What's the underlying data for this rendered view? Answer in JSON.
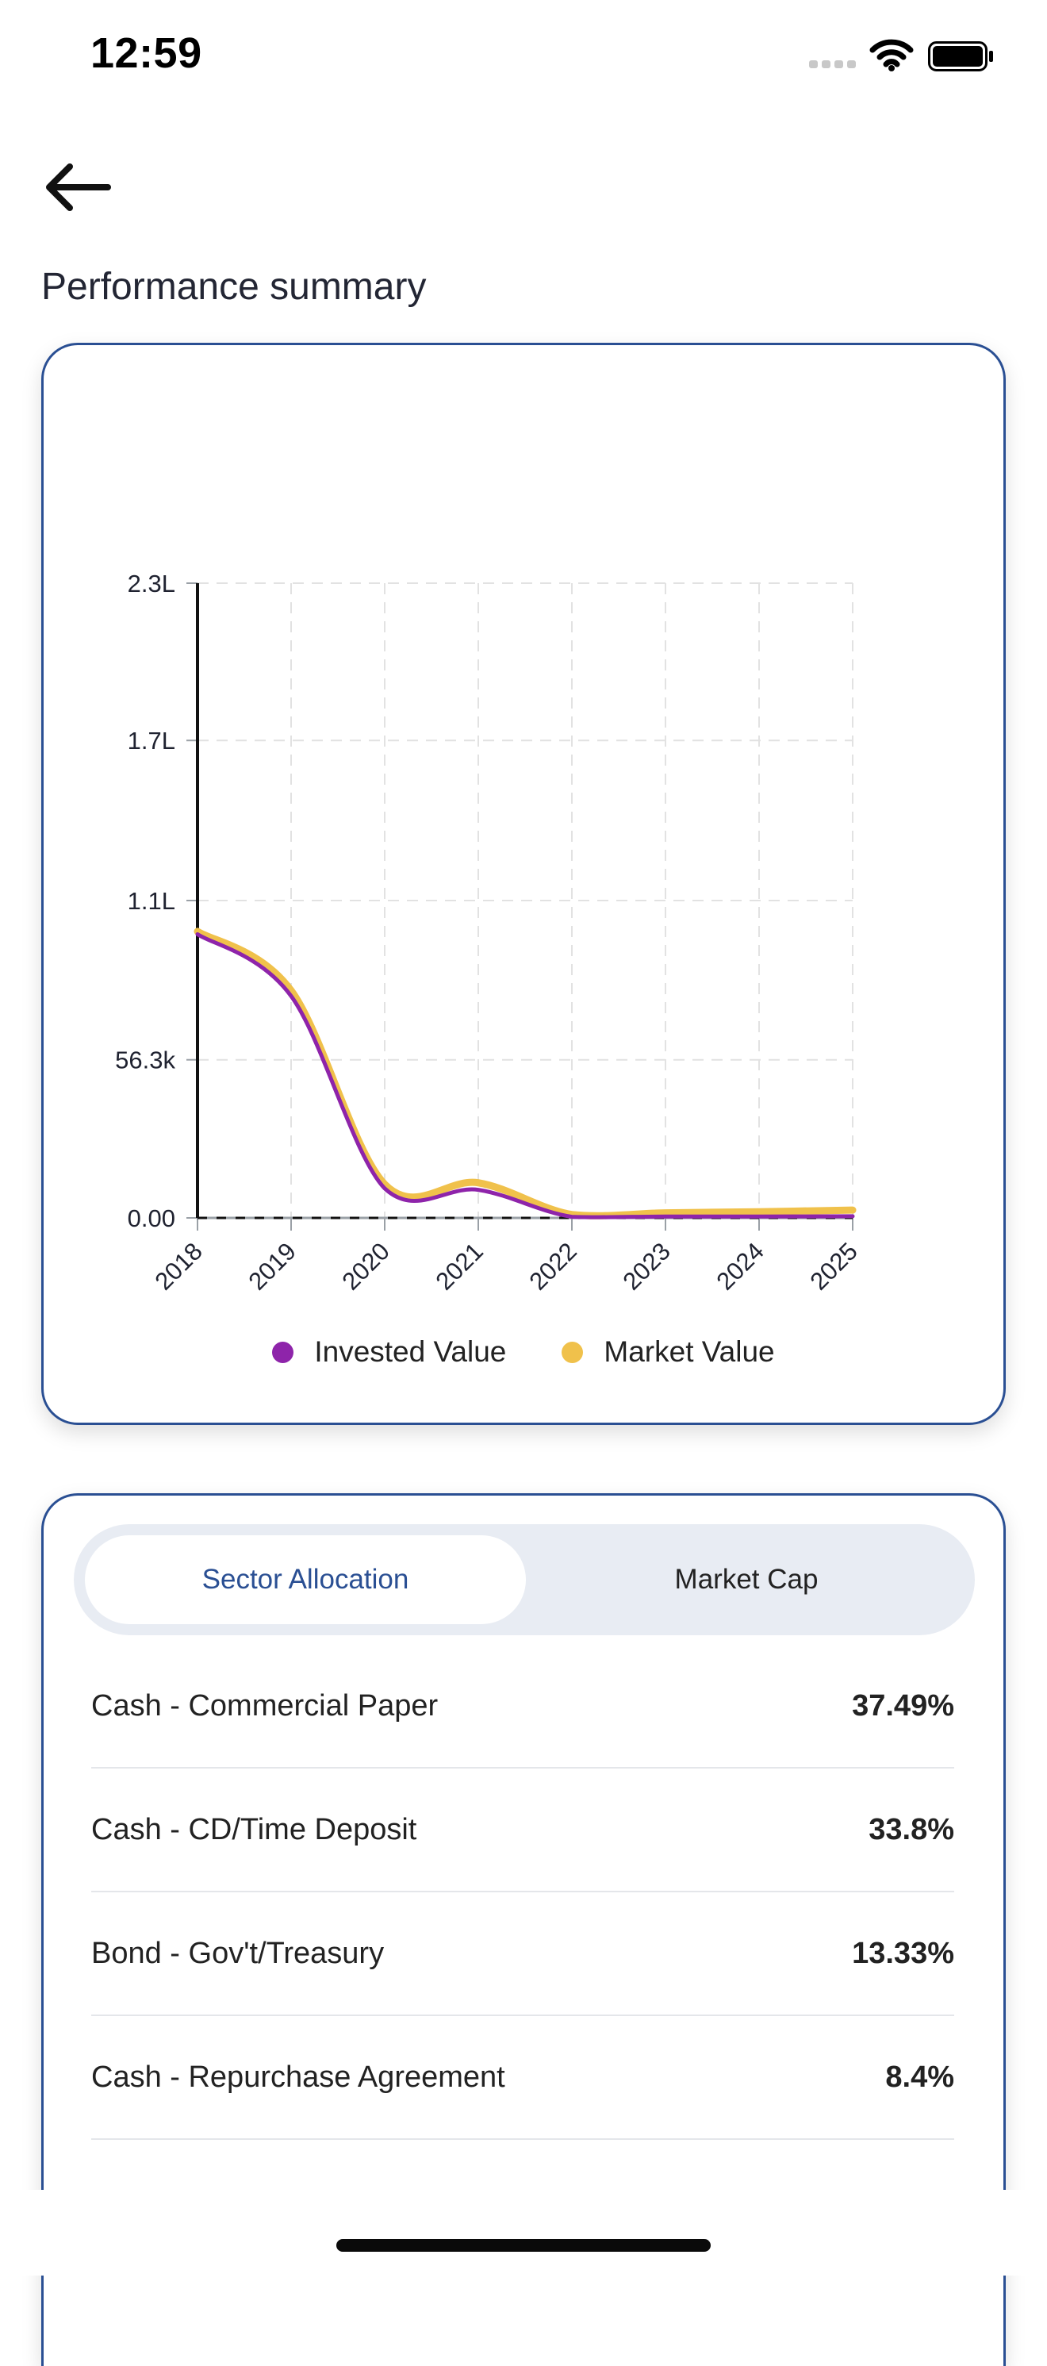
{
  "status_bar": {
    "time": "12:59"
  },
  "header": {
    "title": "Performance summary"
  },
  "chart_data": {
    "type": "line",
    "x": [
      "2018",
      "2019",
      "2020",
      "2021",
      "2022",
      "2023",
      "2024",
      "2025"
    ],
    "y_ticks": [
      "0.00",
      "56.3k",
      "1.1L",
      "1.7L",
      "2.3L"
    ],
    "y_tick_values": [
      0,
      56300,
      113000,
      170000,
      226000
    ],
    "ylim": [
      0,
      226000
    ],
    "grid": true,
    "legend_position": "bottom-center",
    "series": [
      {
        "name": "Invested Value",
        "color": "#8e24aa",
        "values": [
          101000,
          79000,
          10500,
          10000,
          400,
          500,
          500,
          600
        ]
      },
      {
        "name": "Market Value",
        "color": "#f0c14b",
        "values": [
          102000,
          81000,
          12000,
          12500,
          1200,
          1800,
          2200,
          2800
        ]
      }
    ]
  },
  "allocation": {
    "tabs": [
      {
        "label": "Sector Allocation",
        "active": true
      },
      {
        "label": "Market Cap",
        "active": false
      }
    ],
    "rows": [
      {
        "name": "Cash - Commercial Paper",
        "percent": "37.49%"
      },
      {
        "name": "Cash - CD/Time Deposit",
        "percent": "33.8%"
      },
      {
        "name": "Bond - Gov't/Treasury",
        "percent": "13.33%"
      },
      {
        "name": "Cash - Repurchase Agreement",
        "percent": "8.4%"
      }
    ]
  }
}
